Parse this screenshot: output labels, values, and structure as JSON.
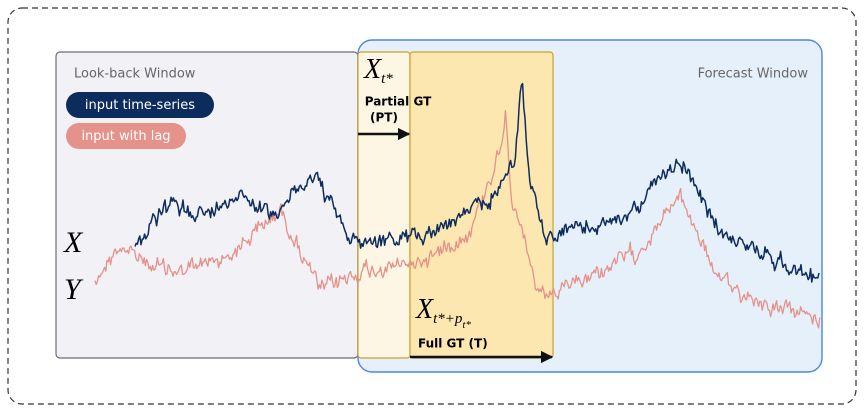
{
  "lookback_label": "Look-back Window",
  "forecast_label": "Forecast Window",
  "legend": [
    {
      "label": "input time-series",
      "color": "#0d2c5e"
    },
    {
      "label": "input with lag",
      "color": "#e5928a"
    }
  ],
  "axis_labels": {
    "x": "X",
    "y": "Y"
  },
  "partial": {
    "symbol": {
      "base": "X",
      "sub": "t*"
    },
    "label": "Partial GT",
    "abbr": "(PT)"
  },
  "full": {
    "symbol": {
      "base": "X",
      "sub": "t*+p",
      "subsub": "t*"
    },
    "label": "Full GT (T)"
  }
}
